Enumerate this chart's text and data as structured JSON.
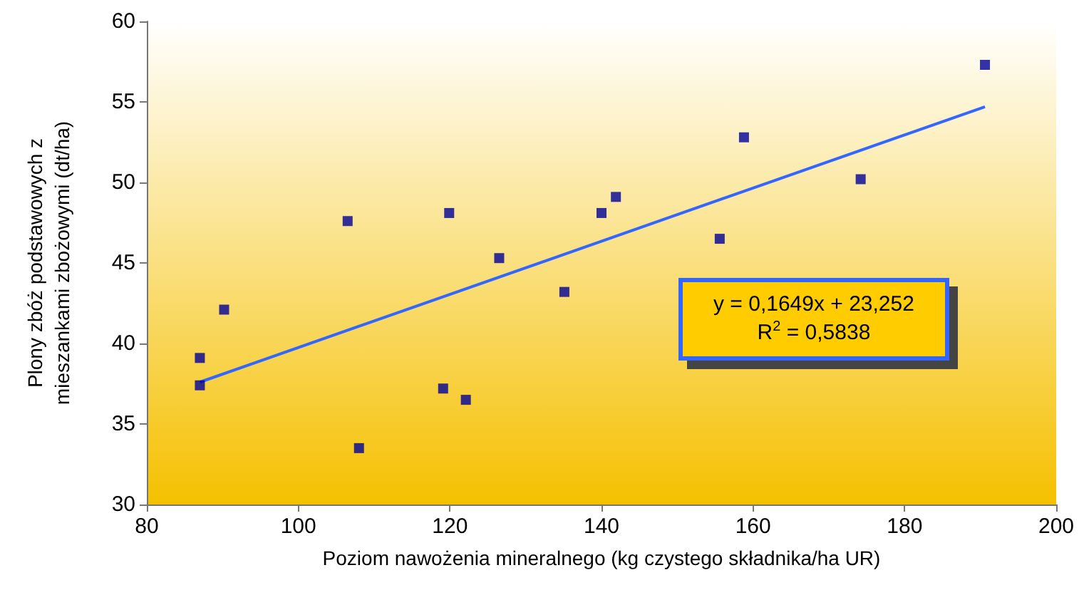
{
  "chart_data": {
    "type": "scatter",
    "xlabel": "Poziom nawożenia mineralnego (kg czystego składnika/ha UR)",
    "ylabel": "Plony zbóż podstawowych z mieszankami zbożowymi (dt/ha)",
    "xlim": [
      80,
      200
    ],
    "xticks": [
      80,
      100,
      120,
      140,
      160,
      180,
      200
    ],
    "ylim": [
      30,
      60
    ],
    "yticks": [
      30,
      35,
      40,
      45,
      50,
      55,
      60
    ],
    "grid": false,
    "marker": "square",
    "annotations": [
      "y = 0,1649x + 23,252",
      "R$^{2}$ = 0,5838"
    ],
    "series": [
      {
        "type": "scatter",
        "color": "#000099",
        "x": [
          87,
          87,
          90.2,
          106.5,
          108,
          119.1,
          119.9,
          122.1,
          126.5,
          135.1,
          140,
          141.9,
          155.6,
          158.8,
          174.2,
          190.6
        ],
        "values": [
          39.1,
          37.4,
          42.1,
          47.6,
          33.5,
          37.2,
          48.1,
          36.5,
          45.3,
          43.2,
          48.1,
          49.1,
          46.5,
          52.8,
          50.2,
          57.3
        ]
      },
      {
        "type": "line",
        "color": "#3366ff",
        "marker": "none",
        "line_style": "solid",
        "x": [
          87,
          190.6
        ],
        "values": [
          37.6,
          54.7
        ]
      }
    ]
  }
}
